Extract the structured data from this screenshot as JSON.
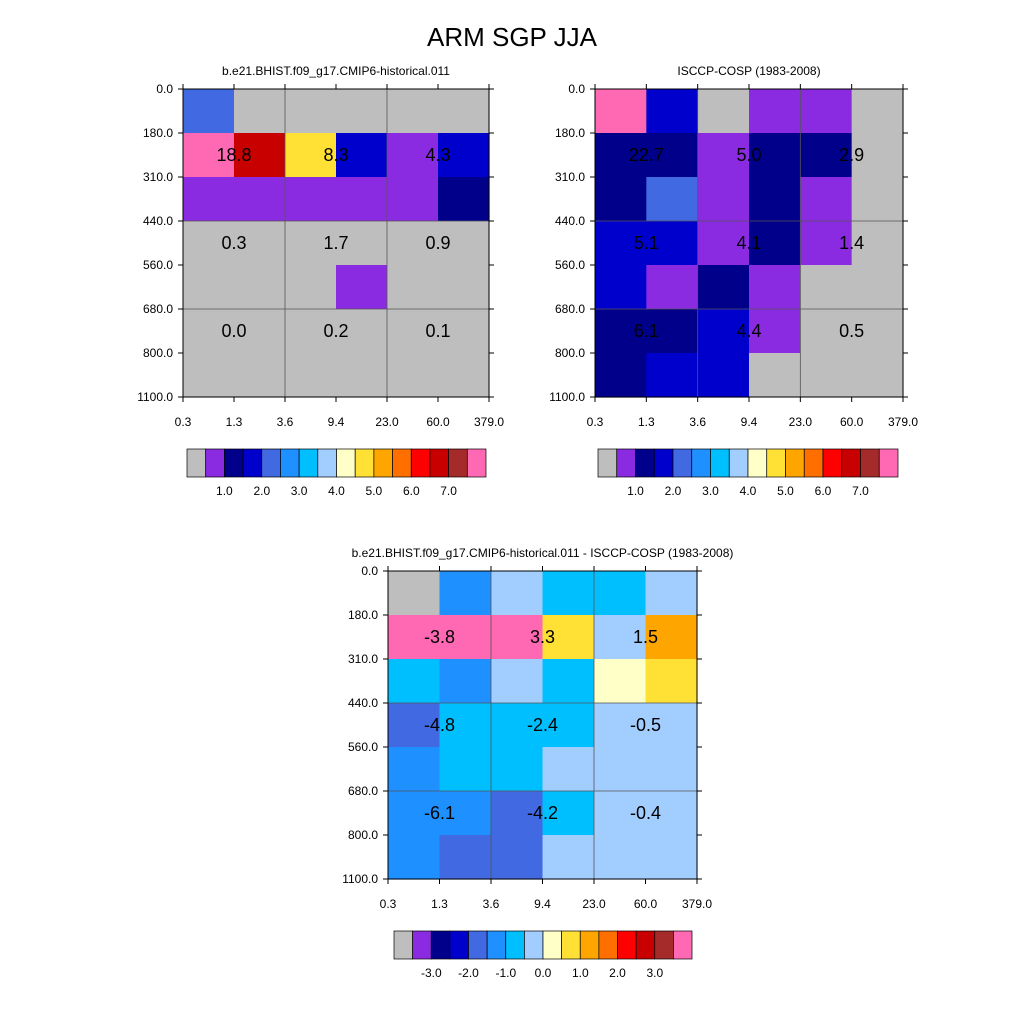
{
  "title": "ARM SGP JJA",
  "y_ticks": [
    "0.0",
    "180.0",
    "310.0",
    "440.0",
    "560.0",
    "680.0",
    "800.0",
    "1100.0"
  ],
  "x_ticks": [
    "0.3",
    "1.3",
    "3.6",
    "9.4",
    "23.0",
    "60.0",
    "379.0"
  ],
  "palette": {
    "G": "#bebebe",
    "V": "#8a2be2",
    "N": "#00008b",
    "B": "#0000cd",
    "R": "#4169e1",
    "D": "#1e90ff",
    "S": "#00bfff",
    "L": "#a2cdff",
    "Y": "#ffffc8",
    "Z": "#ffe135",
    "O": "#ffa500",
    "T": "#ff6f00",
    "E": "#ff0000",
    "K": "#c80000",
    "W": "#a52a2a",
    "P": "#ff69b4"
  },
  "chart_data": [
    {
      "type": "heatmap",
      "title": "b.e21.BHIST.f09_g17.CMIP6-historical.011",
      "x_edges": [
        0.3,
        1.3,
        3.6,
        9.4,
        23.0,
        60.0,
        379.0
      ],
      "y_edges": [
        0.0,
        180.0,
        310.0,
        440.0,
        560.0,
        680.0,
        800.0,
        1100.0
      ],
      "cells": [
        "RGGGGG",
        "PKZBVB",
        "VVVVVN",
        "GGGGGG",
        "GGGVGG",
        "GGGGGG",
        "GGGGGG"
      ],
      "labels": [
        [
          "18.8",
          "8.3",
          "4.3"
        ],
        [
          "0.3",
          "1.7",
          "0.9"
        ],
        [
          "0.0",
          "0.2",
          "0.1"
        ]
      ],
      "colorbar": {
        "colors": [
          "G",
          "V",
          "N",
          "B",
          "R",
          "D",
          "S",
          "L",
          "Y",
          "Z",
          "O",
          "T",
          "E",
          "K",
          "W",
          "P"
        ],
        "labels": [
          "1.0",
          "2.0",
          "3.0",
          "4.0",
          "5.0",
          "6.0",
          "7.0"
        ],
        "label_start": 2
      }
    },
    {
      "type": "heatmap",
      "title": "ISCCP-COSP (1983-2008)",
      "x_edges": [
        0.3,
        1.3,
        3.6,
        9.4,
        23.0,
        60.0,
        379.0
      ],
      "y_edges": [
        0.0,
        180.0,
        310.0,
        440.0,
        560.0,
        680.0,
        800.0,
        1100.0
      ],
      "cells": [
        "PBGVVG",
        "NNVNNG",
        "NRVNVG",
        "BBVNVG",
        "BVNVGG",
        "NNBVGG",
        "NBBGGG"
      ],
      "labels": [
        [
          "22.7",
          "5.0",
          "2.9"
        ],
        [
          "5.1",
          "4.1",
          "1.4"
        ],
        [
          "6.1",
          "4.4",
          "0.5"
        ]
      ],
      "colorbar": {
        "colors": [
          "G",
          "V",
          "N",
          "B",
          "R",
          "D",
          "S",
          "L",
          "Y",
          "Z",
          "O",
          "T",
          "E",
          "K",
          "W",
          "P"
        ],
        "labels": [
          "1.0",
          "2.0",
          "3.0",
          "4.0",
          "5.0",
          "6.0",
          "7.0"
        ],
        "label_start": 2
      }
    },
    {
      "type": "heatmap",
      "title": "b.e21.BHIST.f09_g17.CMIP6-historical.011 - ISCCP-COSP (1983-2008)",
      "x_edges": [
        0.3,
        1.3,
        3.6,
        9.4,
        23.0,
        60.0,
        379.0
      ],
      "y_edges": [
        0.0,
        180.0,
        310.0,
        440.0,
        560.0,
        680.0,
        800.0,
        1100.0
      ],
      "cells": [
        "GDLSSL",
        "PPPZLO",
        "SDLSYZ",
        "RSSSLL",
        "DSSLLL",
        "DDRSLL",
        "DRRLLL"
      ],
      "labels": [
        [
          "-3.8",
          "3.3",
          "1.5"
        ],
        [
          "-4.8",
          "-2.4",
          "-0.5"
        ],
        [
          "-6.1",
          "-4.2",
          "-0.4"
        ]
      ],
      "colorbar": {
        "colors": [
          "G",
          "V",
          "N",
          "B",
          "R",
          "D",
          "S",
          "L",
          "Y",
          "Z",
          "O",
          "T",
          "E",
          "K",
          "W",
          "P"
        ],
        "labels": [
          "-3.0",
          "-2.0",
          "-1.0",
          "0.0",
          "1.0",
          "2.0",
          "3.0"
        ],
        "label_start": 2
      }
    }
  ]
}
